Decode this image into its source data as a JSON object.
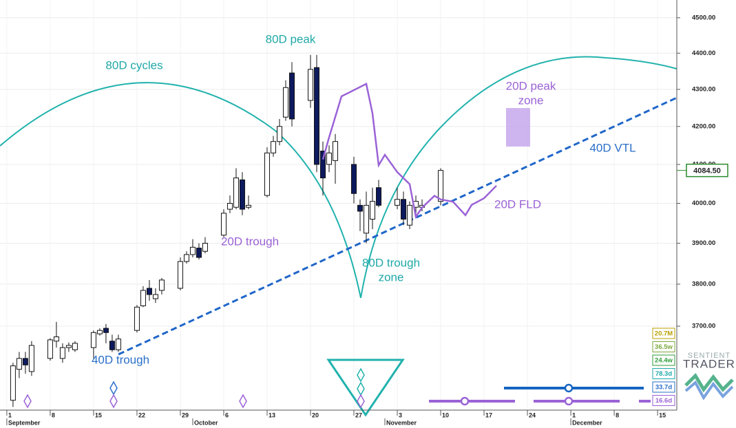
{
  "chart_data": {
    "type": "candlestick",
    "log_scale": true,
    "grid": true,
    "up_color": "#ffffff",
    "down_color": "#0d1a5e",
    "wick_color": "#111111",
    "x": [
      1,
      2,
      3,
      4,
      7,
      8,
      9,
      10,
      11,
      14,
      15,
      16,
      17,
      18,
      21,
      22,
      23,
      24,
      25,
      28,
      29,
      30,
      31,
      32,
      35,
      36,
      37,
      38,
      39,
      42,
      43,
      44,
      45,
      46,
      49,
      50,
      51,
      52,
      53,
      56,
      57,
      58,
      59,
      60,
      63,
      64,
      65,
      66,
      67,
      70
    ],
    "open": [
      3530,
      3600,
      3625,
      3595,
      3625,
      3665,
      3625,
      3650,
      3645,
      3650,
      3682,
      3695,
      3665,
      3645,
      3690,
      3748,
      3790,
      3765,
      3785,
      3790,
      3855,
      3872,
      3888,
      3880,
      3920,
      3985,
      3990,
      4060,
      3990,
      4020,
      4130,
      4160,
      4225,
      4345,
      4270,
      4360,
      4135,
      4100,
      4110,
      4100,
      3995,
      3925,
      3960,
      4040,
      3995,
      4010,
      3945,
      3990,
      3990,
      4005
    ],
    "high": [
      3615,
      3640,
      3640,
      3665,
      3672,
      3710,
      3660,
      3662,
      3665,
      3690,
      3695,
      3705,
      3680,
      3680,
      3750,
      3795,
      3810,
      3790,
      3815,
      3865,
      3880,
      3910,
      3900,
      3915,
      3985,
      4020,
      4090,
      4080,
      4020,
      4145,
      4175,
      4220,
      4325,
      4375,
      4395,
      4395,
      4160,
      4150,
      4180,
      4120,
      4010,
      4030,
      4040,
      4060,
      4040,
      4030,
      4005,
      4020,
      4010,
      4090
    ],
    "low": [
      3515,
      3580,
      3590,
      3585,
      3620,
      3650,
      3615,
      3640,
      3640,
      3625,
      3678,
      3660,
      3640,
      3640,
      3685,
      3745,
      3760,
      3755,
      3775,
      3785,
      3850,
      3865,
      3860,
      3875,
      3915,
      3975,
      3985,
      3970,
      3985,
      4015,
      4120,
      4150,
      4215,
      4200,
      4250,
      4080,
      4020,
      4080,
      4050,
      4000,
      3930,
      3900,
      3935,
      3990,
      3985,
      3945,
      3935,
      3970,
      3980,
      3995
    ],
    "close": [
      3608,
      3625,
      3610,
      3655,
      3668,
      3675,
      3650,
      3655,
      3660,
      3685,
      3690,
      3685,
      3645,
      3670,
      3745,
      3785,
      3775,
      3775,
      3810,
      3855,
      3872,
      3890,
      3865,
      3900,
      3975,
      4000,
      4065,
      3985,
      3995,
      4130,
      4160,
      4200,
      4305,
      4220,
      4355,
      4100,
      4065,
      4130,
      4160,
      4025,
      3980,
      3995,
      4005,
      3995,
      4010,
      3960,
      3995,
      4005,
      3995,
      4084.5
    ],
    "ylim": [
      3508,
      4551
    ],
    "yticks": [
      {
        "value": 3700,
        "label": "3700.00"
      },
      {
        "value": 3800,
        "label": "3800.00"
      },
      {
        "value": 3900,
        "label": "3900.00"
      },
      {
        "value": 4000,
        "label": "4000.00"
      },
      {
        "value": 4100,
        "label": "4100.00"
      },
      {
        "value": 4200,
        "label": "4200.00"
      },
      {
        "value": 4300,
        "label": "4300.00"
      },
      {
        "value": 4400,
        "label": "4400.00"
      },
      {
        "value": 4500,
        "label": "4500.00"
      }
    ],
    "xlim": [
      -1.1,
      108.1
    ],
    "xticks": [
      {
        "value": 0,
        "label": "1"
      },
      {
        "value": 7,
        "label": "8"
      },
      {
        "value": 14,
        "label": "15"
      },
      {
        "value": 21,
        "label": "22"
      },
      {
        "value": 28,
        "label": "29"
      },
      {
        "value": 35,
        "label": "6"
      },
      {
        "value": 42,
        "label": "13"
      },
      {
        "value": 49,
        "label": "20"
      },
      {
        "value": 56,
        "label": "27"
      },
      {
        "value": 63,
        "label": "3"
      },
      {
        "value": 70,
        "label": "10"
      },
      {
        "value": 77,
        "label": "17"
      },
      {
        "value": 84,
        "label": "24"
      },
      {
        "value": 91,
        "label": "1"
      },
      {
        "value": 98,
        "label": "8"
      },
      {
        "value": 105,
        "label": "15"
      }
    ],
    "month_labels": [
      {
        "value": 0,
        "label": "September"
      },
      {
        "value": 30,
        "label": "October"
      },
      {
        "value": 61,
        "label": "November"
      },
      {
        "value": 91,
        "label": "December"
      }
    ],
    "fld": {
      "color": "#9a62d6",
      "x": [
        51,
        52,
        54,
        58,
        59,
        60,
        61,
        63,
        65,
        66,
        67,
        69,
        70,
        72,
        74,
        75,
        77,
        79
      ],
      "values": [
        4113,
        4171,
        4281,
        4315,
        4235,
        4098,
        4125,
        4080,
        4049,
        3966,
        3989,
        4019,
        4010,
        4004,
        3970,
        3996,
        4013,
        4045
      ]
    },
    "last_price": {
      "value": 4084.5,
      "label": "4084.50",
      "color": "#2a8a2a"
    },
    "annotations": [
      {
        "text": [
          "80D peak"
        ],
        "color": "#20a8a8"
      },
      {
        "text": [
          "80D cycles"
        ],
        "color": "#20a8a8"
      },
      {
        "text": [
          "20D peak",
          "zone"
        ],
        "color": "#9a62d6"
      },
      {
        "text": [
          "40D VTL"
        ],
        "color": "#2a6fc9"
      },
      {
        "text": [
          "20D FLD"
        ],
        "color": "#9a62d6"
      },
      {
        "text": [
          "20D trough"
        ],
        "color": "#9a62d6"
      },
      {
        "text": [
          "80D trough",
          "zone"
        ],
        "color": "#20a8a8"
      },
      {
        "text": [
          "40D trough"
        ],
        "color": "#2a6fc9"
      }
    ],
    "cycle_labels": [
      {
        "label": "20.7M",
        "color": "#b8a000"
      },
      {
        "label": "36.5w",
        "color": "#7aa83a"
      },
      {
        "label": "24.4w",
        "color": "#2f9e3a"
      },
      {
        "label": "78.3d",
        "color": "#1fa9aa"
      },
      {
        "label": "33.7d",
        "color": "#2a6fc9"
      },
      {
        "label": "16.6d",
        "color": "#9a62d6"
      }
    ]
  },
  "logo": {
    "line1": "SENTIENT",
    "line2": "TRADER"
  }
}
